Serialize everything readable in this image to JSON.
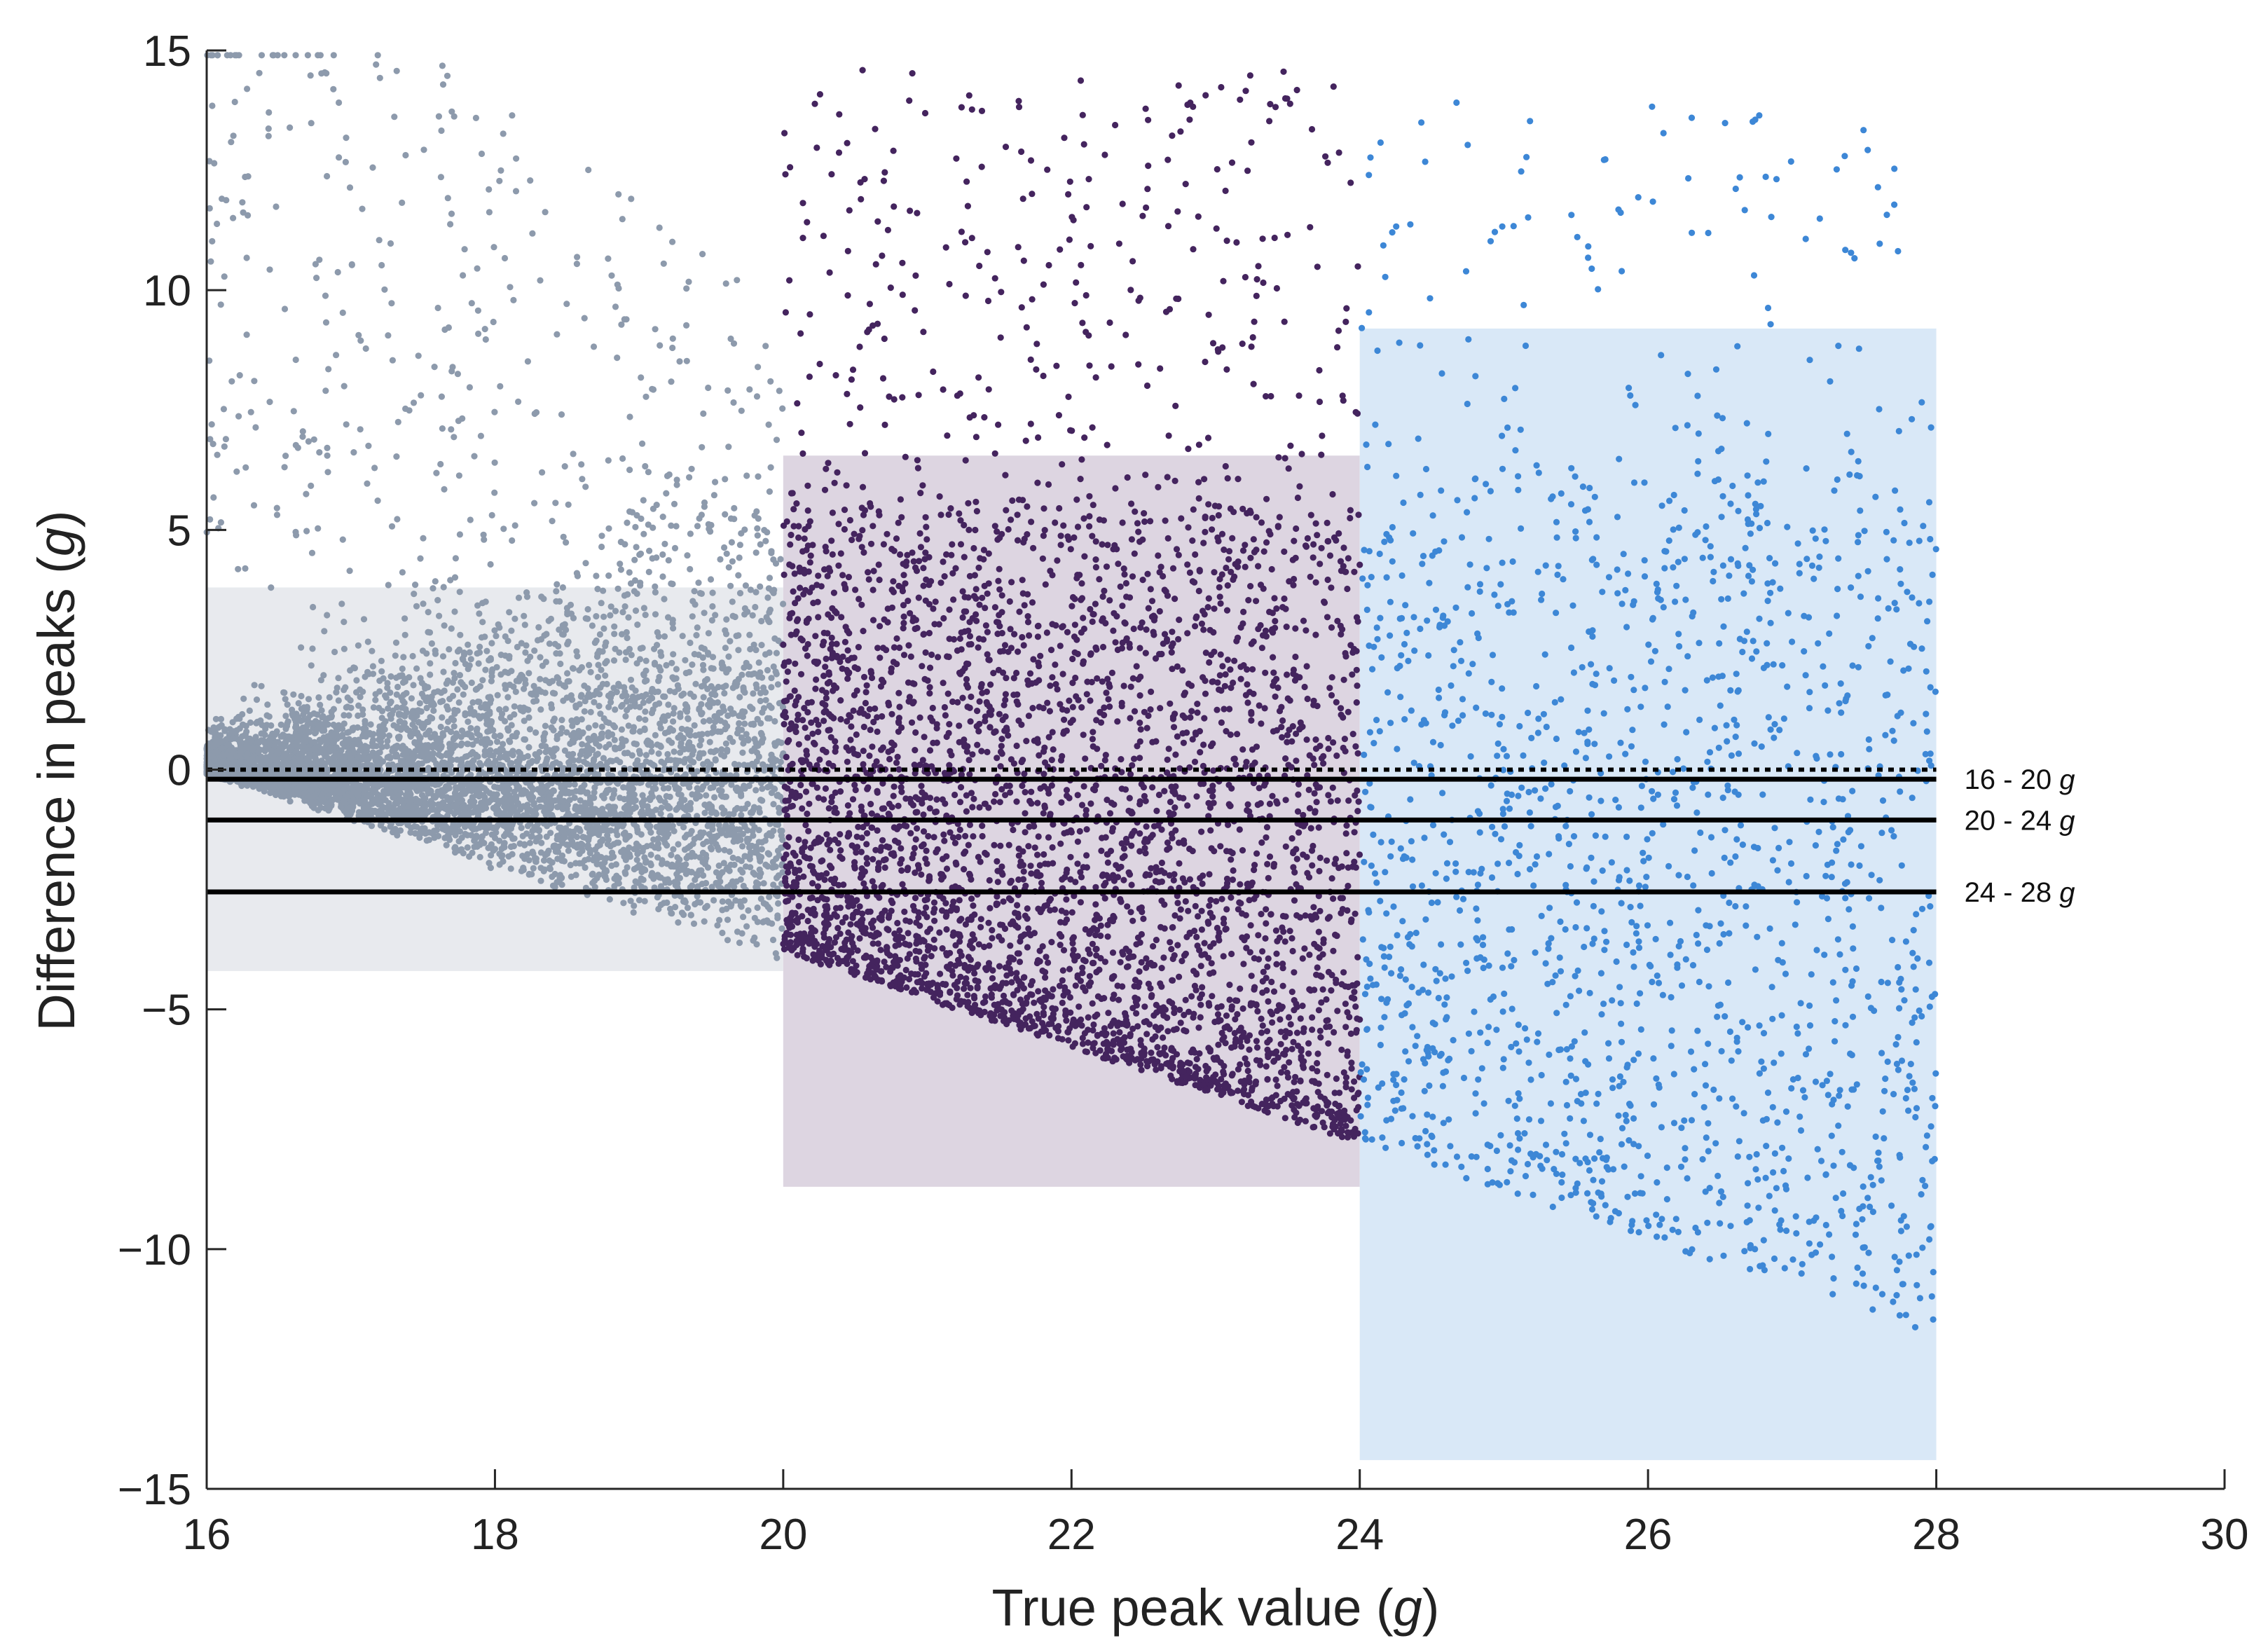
{
  "chart_data": {
    "type": "scatter",
    "xlabel": "True peak value (g)",
    "ylabel": "Difference in peaks (g)",
    "xlim": [
      16,
      30
    ],
    "ylim": [
      -15,
      15
    ],
    "xticks": [
      16,
      18,
      20,
      22,
      24,
      26,
      28,
      30
    ],
    "yticks": [
      -15,
      -10,
      -5,
      0,
      5,
      10,
      15
    ],
    "xtick_labels": [
      "16",
      "18",
      "20",
      "22",
      "24",
      "26",
      "28",
      "30"
    ],
    "ytick_labels": [
      "−15",
      "−10",
      "−5",
      "0",
      "5",
      "10",
      "15"
    ],
    "xlabel_parts": {
      "text": "True peak value (",
      "unit": "g",
      "close": ")"
    },
    "ylabel_parts": {
      "text": "Difference in peaks (",
      "unit": "g",
      "close": ")"
    },
    "grid": false,
    "zero_line": {
      "y": 0,
      "style": "dotted",
      "x_range": [
        16,
        28
      ]
    },
    "series": [
      {
        "label": "16 - 20 g",
        "label_parts": {
          "text": "16 - 20 ",
          "unit": "g"
        },
        "x_range": [
          16,
          20
        ],
        "color": "#8d9aac",
        "mean_difference": -0.2,
        "limits_of_agreement": [
          -4.2,
          3.8
        ],
        "band_color": "#e8eaee",
        "n_points_approx": 6000
      },
      {
        "label": "20 - 24 g",
        "label_parts": {
          "text": "20 - 24 ",
          "unit": "g"
        },
        "x_range": [
          20,
          24
        ],
        "color": "#44245e",
        "mean_difference": -1.05,
        "limits_of_agreement": [
          -8.7,
          6.55
        ],
        "band_color": "#ddd5e1",
        "n_points_approx": 4000
      },
      {
        "label": "24 - 28 g",
        "label_parts": {
          "text": "24 - 28 ",
          "unit": "g"
        },
        "x_range": [
          24,
          28
        ],
        "color": "#3d87d6",
        "mean_difference": -2.55,
        "limits_of_agreement": [
          -14.4,
          9.2
        ],
        "band_color": "#d9e8f7",
        "n_points_approx": 1600
      }
    ]
  }
}
